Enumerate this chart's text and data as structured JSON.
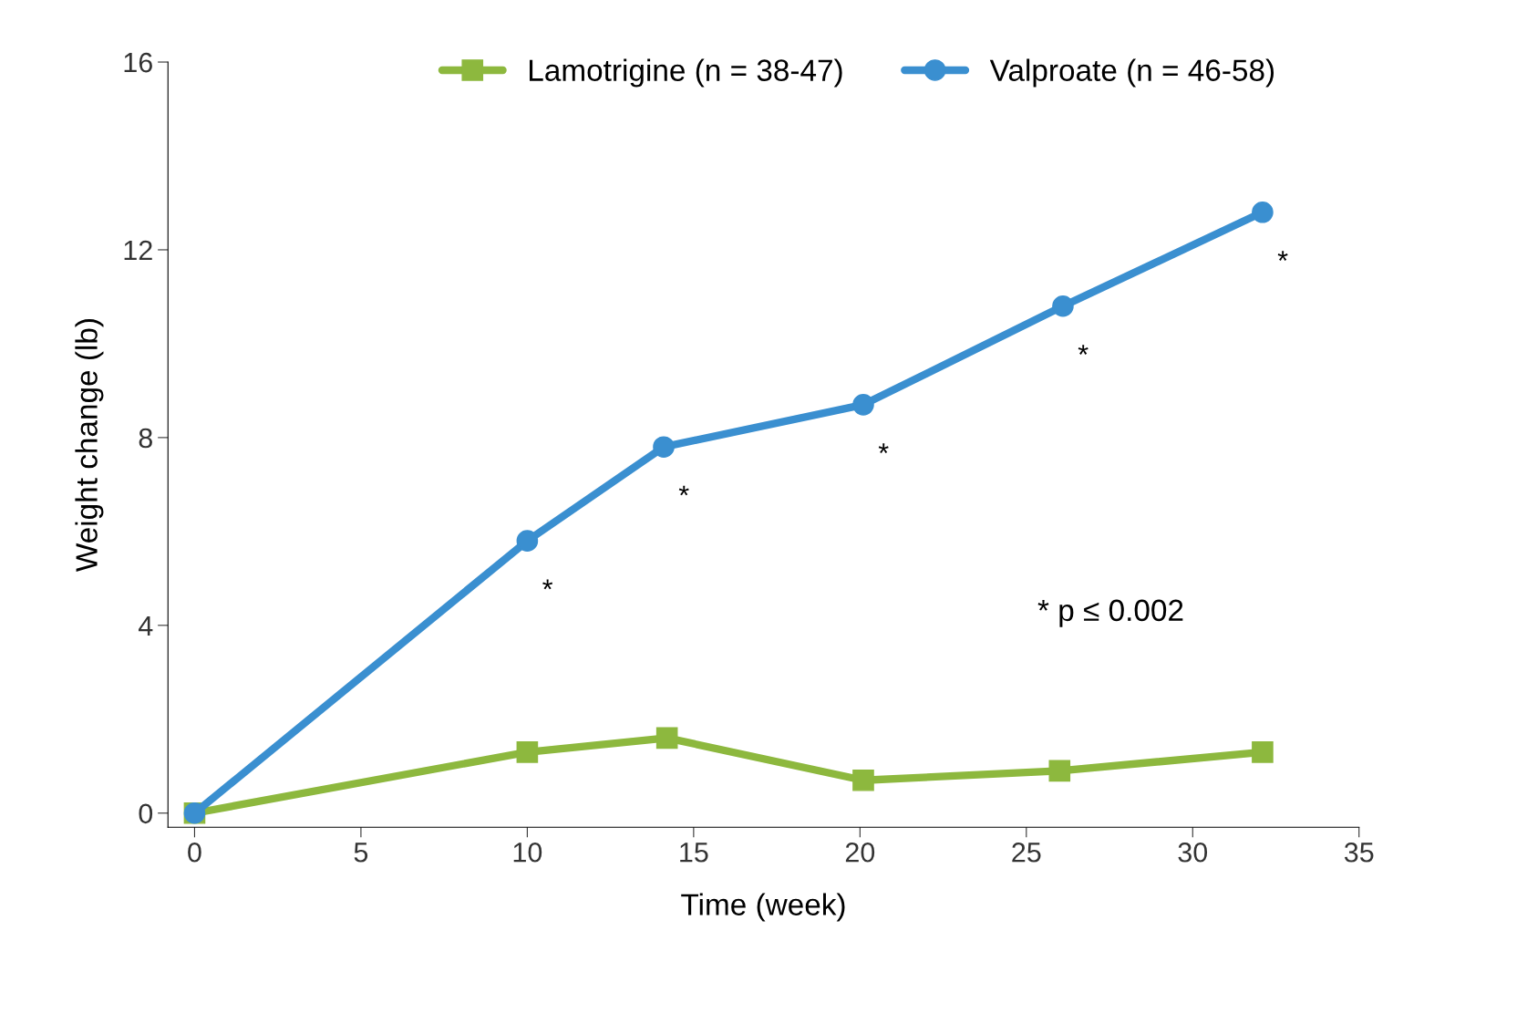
{
  "chart_data": {
    "type": "line",
    "xlabel": "Time (week)",
    "ylabel": "Weight change (lb)",
    "series": [
      {
        "name": "Lamotrigine (n = 38-47)",
        "color": "#8db83e",
        "marker": "square",
        "x": [
          0,
          10,
          14.2,
          20.1,
          26,
          32.1
        ],
        "values": [
          0,
          1.3,
          1.6,
          0.7,
          0.9,
          1.3
        ]
      },
      {
        "name": "Valproate (n = 46-58)",
        "color": "#3a8fd0",
        "marker": "circle",
        "x": [
          0,
          10,
          14.1,
          20.1,
          26.1,
          32.1
        ],
        "values": [
          0,
          5.8,
          7.8,
          8.7,
          10.8,
          12.8
        ]
      }
    ],
    "annotations": [
      {
        "text": "*",
        "x": 10,
        "y": 5.8
      },
      {
        "text": "*",
        "x": 14.1,
        "y": 7.8
      },
      {
        "text": "*",
        "x": 20.1,
        "y": 8.7
      },
      {
        "text": "*",
        "x": 26.1,
        "y": 10.8
      },
      {
        "text": "*",
        "x": 32.1,
        "y": 12.8
      },
      "* p ≤ 0.002"
    ],
    "xlim": [
      -0.8,
      35
    ],
    "ylim": [
      -0.3,
      16
    ],
    "xticks": [
      0,
      5,
      10,
      15,
      20,
      25,
      30,
      35
    ],
    "yticks": [
      0,
      4,
      8,
      12,
      16
    ],
    "grid": false,
    "legend": "top",
    "line_style": "solid"
  }
}
